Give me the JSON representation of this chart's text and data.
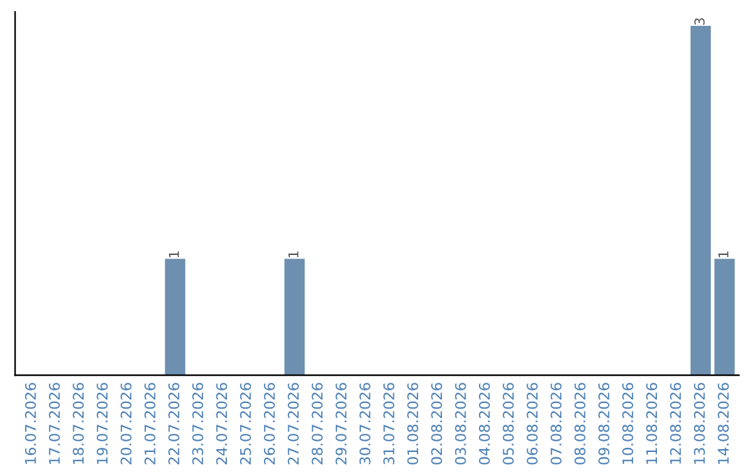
{
  "chart_data": {
    "type": "bar",
    "categories": [
      "16.07.2026",
      "17.07.2026",
      "18.07.2026",
      "19.07.2026",
      "20.07.2026",
      "21.07.2026",
      "22.07.2026",
      "23.07.2026",
      "24.07.2026",
      "25.07.2026",
      "26.07.2026",
      "27.07.2026",
      "28.07.2026",
      "29.07.2026",
      "30.07.2026",
      "31.07.2026",
      "01.08.2026",
      "02.08.2026",
      "03.08.2026",
      "04.08.2026",
      "05.08.2026",
      "06.08.2026",
      "07.08.2026",
      "08.08.2026",
      "09.08.2026",
      "10.08.2026",
      "11.08.2026",
      "12.08.2026",
      "13.08.2026",
      "14.08.2026"
    ],
    "values": [
      0,
      0,
      0,
      0,
      0,
      0,
      1,
      0,
      0,
      0,
      0,
      1,
      0,
      0,
      0,
      0,
      0,
      0,
      0,
      0,
      0,
      0,
      0,
      0,
      0,
      0,
      0,
      0,
      3,
      1
    ],
    "value_labels": [
      null,
      null,
      null,
      null,
      null,
      null,
      "1",
      null,
      null,
      null,
      null,
      "1",
      null,
      null,
      null,
      null,
      null,
      null,
      null,
      null,
      null,
      null,
      null,
      null,
      null,
      null,
      null,
      null,
      "3",
      "1"
    ],
    "color": "#6d8fb0",
    "grid": false,
    "legend": false
  }
}
